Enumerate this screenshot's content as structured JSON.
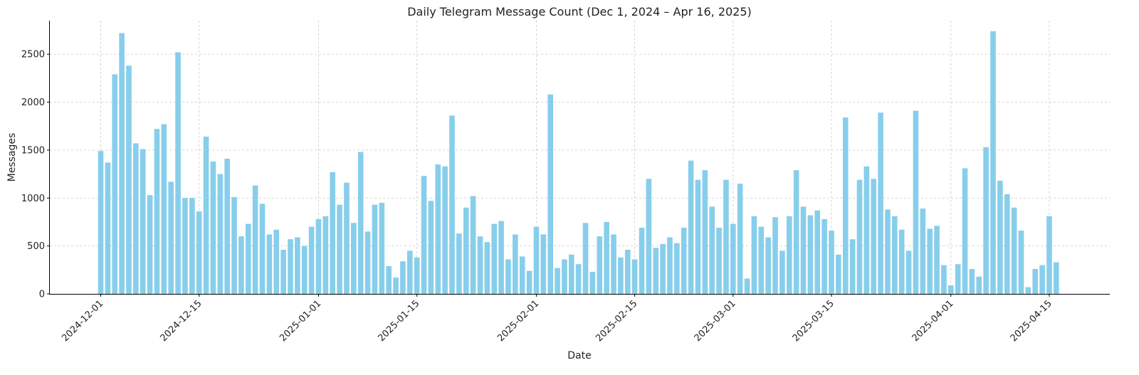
{
  "chart_data": {
    "type": "bar",
    "title": "Daily Telegram Message Count (Dec 1, 2024 – Apr 16, 2025)",
    "xlabel": "Date",
    "ylabel": "Messages",
    "start_date": "2024-12-01",
    "ylim": [
      0,
      2850
    ],
    "yticks": [
      0,
      500,
      1000,
      1500,
      2000,
      2500
    ],
    "xticks": [
      "2024-12-01",
      "2024-12-15",
      "2025-01-01",
      "2025-01-15",
      "2025-02-01",
      "2025-02-15",
      "2025-03-01",
      "2025-03-15",
      "2025-04-01",
      "2025-04-15"
    ],
    "grid": true,
    "bar_color": "#87ceeb",
    "values": [
      1490,
      1370,
      2290,
      2720,
      2380,
      1570,
      1510,
      1030,
      1720,
      1770,
      1170,
      2520,
      1000,
      1000,
      860,
      1640,
      1380,
      1250,
      1410,
      1010,
      600,
      730,
      1130,
      940,
      620,
      670,
      460,
      570,
      590,
      500,
      700,
      780,
      810,
      1270,
      930,
      1160,
      740,
      1480,
      650,
      930,
      950,
      290,
      170,
      340,
      450,
      380,
      1230,
      970,
      1350,
      1330,
      1860,
      630,
      900,
      1020,
      600,
      540,
      730,
      760,
      360,
      620,
      390,
      240,
      700,
      620,
      2080,
      270,
      360,
      410,
      310,
      740,
      230,
      600,
      750,
      620,
      380,
      460,
      360,
      690,
      1200,
      480,
      520,
      590,
      530,
      690,
      1390,
      1190,
      1290,
      910,
      690,
      1190,
      730,
      1150,
      160,
      810,
      700,
      590,
      800,
      450,
      810,
      1290,
      910,
      820,
      870,
      780,
      660,
      410,
      1840,
      570,
      1190,
      1330,
      1200,
      1890,
      880,
      810,
      670,
      450,
      1910,
      890,
      680,
      710,
      300,
      90,
      310,
      1310,
      260,
      180,
      1530,
      2740,
      1180,
      1040,
      900,
      660,
      70,
      260,
      300,
      810,
      330
    ]
  }
}
